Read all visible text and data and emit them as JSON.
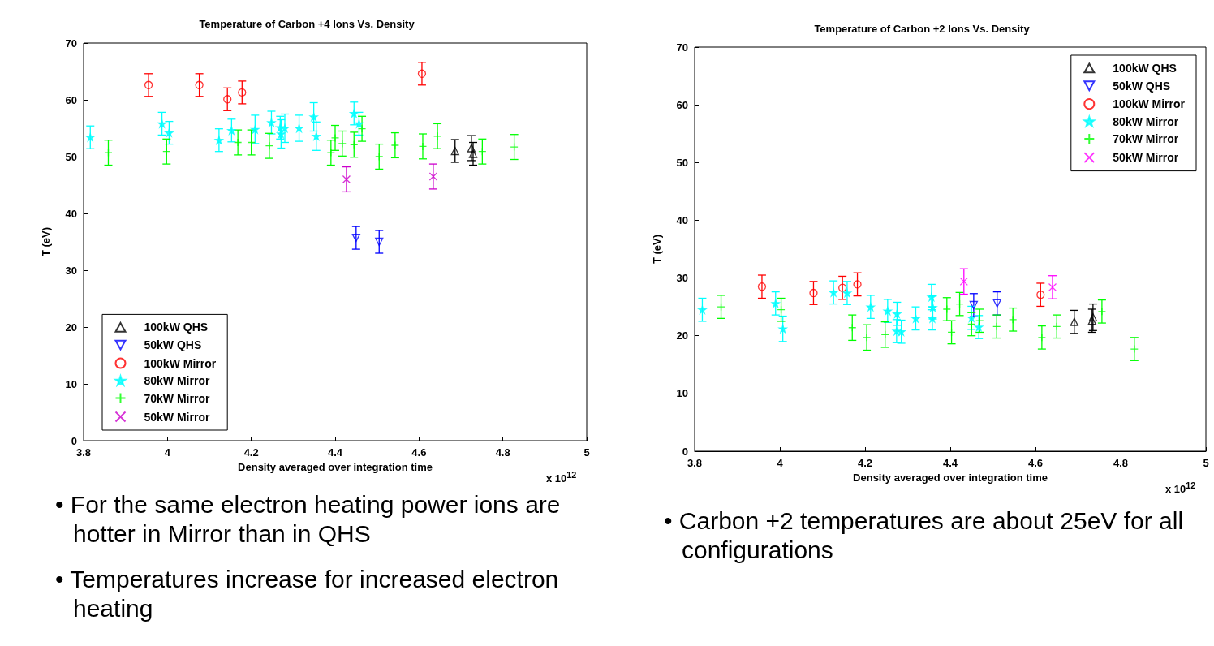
{
  "chart_data": [
    {
      "type": "scatter",
      "title": "Temperature of Carbon +4 Ions Vs. Density",
      "xlabel": "Density averaged over integration time",
      "ylabel": "T (eV)",
      "xlim": [
        3.8,
        5
      ],
      "xticks": [
        3.8,
        4,
        4.2,
        4.4,
        4.6,
        4.8,
        5
      ],
      "ylim": [
        0,
        70
      ],
      "yticks": [
        0,
        10,
        20,
        30,
        40,
        50,
        60,
        70
      ],
      "grid": false,
      "legend": "bottom left",
      "annotations": [
        "x 10$^{12}$",
        "• For the same electron heating power ions are hotter in Mirror than in QHS",
        "• Temperatures increase for increased electron heating"
      ],
      "series": [
        {
          "name": "100kW QHS",
          "color": "#000000",
          "marker": "triangle",
          "x": [
            4.686,
            4.725,
            4.729
          ],
          "values": [
            51,
            51.5,
            50.5
          ],
          "errors": [
            2,
            2.2,
            2
          ]
        },
        {
          "name": "50kW QHS",
          "color": "#0000ff",
          "marker": "triangle-down",
          "x": [
            4.45,
            4.505
          ],
          "values": [
            35.7,
            35
          ],
          "errors": [
            2,
            2
          ]
        },
        {
          "name": "100kW Mirror",
          "color": "#ff0000",
          "marker": "circle",
          "x": [
            3.955,
            4.076,
            4.143,
            4.178,
            4.607
          ],
          "values": [
            62.6,
            62.6,
            60.1,
            61.3,
            64.6
          ],
          "errors": [
            2,
            2,
            2,
            2,
            2
          ]
        },
        {
          "name": "80kW Mirror",
          "color": "#00ffff",
          "marker": "star",
          "x": [
            3.816,
            3.987,
            4.004,
            4.123,
            4.153,
            4.209,
            4.248,
            4.269,
            4.271,
            4.28,
            4.314,
            4.349,
            4.355,
            4.445,
            4.457
          ],
          "values": [
            53.4,
            55.8,
            54.2,
            52.9,
            54.6,
            54.8,
            56,
            55.1,
            54,
            55,
            55,
            57,
            53.6,
            57.6,
            55.8
          ],
          "errors": [
            2,
            2,
            2,
            2,
            2,
            2.5,
            2,
            2,
            2.5,
            2.5,
            2.3,
            2.5,
            2.5,
            2,
            2
          ]
        },
        {
          "name": "70kW Mirror",
          "color": "#00ff00",
          "marker": "cross",
          "x": [
            3.859,
            3.998,
            4.168,
            4.2,
            4.243,
            4.39,
            4.4,
            4.417,
            4.445,
            4.464,
            4.505,
            4.543,
            4.609,
            4.644,
            4.751,
            4.827
          ],
          "values": [
            50.7,
            50.9,
            52.5,
            52.5,
            51.9,
            50.7,
            53.3,
            52.3,
            52.1,
            54.9,
            50,
            52,
            51.8,
            53.6,
            50.9,
            51.7
          ],
          "errors": [
            2.2,
            2.2,
            2.2,
            2.2,
            2.2,
            2.2,
            2.2,
            2.2,
            2.2,
            2.2,
            2.2,
            2.2,
            2.2,
            2.2,
            2.2,
            2.2
          ]
        },
        {
          "name": "50kW Mirror",
          "color": "#cc00cc",
          "marker": "x",
          "x": [
            4.427,
            4.634
          ],
          "values": [
            46,
            46.5
          ],
          "errors": [
            2.2,
            2.2
          ]
        }
      ]
    },
    {
      "type": "scatter",
      "title": "Temperature of Carbon +2 Ions Vs. Density",
      "xlabel": "Density averaged over integration time",
      "ylabel": "T (eV)",
      "xlim": [
        3.8,
        5
      ],
      "xticks": [
        3.8,
        4,
        4.2,
        4.4,
        4.6,
        4.8,
        5
      ],
      "ylim": [
        0,
        70
      ],
      "yticks": [
        0,
        10,
        20,
        30,
        40,
        50,
        60,
        70
      ],
      "grid": false,
      "legend": "top right",
      "annotations": [
        "x 10$^{12}$",
        "• Carbon +2 temperatures are about 25eV for all configurations"
      ],
      "series": [
        {
          "name": "100kW QHS",
          "color": "#000000",
          "marker": "triangle",
          "x": [
            4.691,
            4.733,
            4.735
          ],
          "values": [
            22.4,
            22.6,
            23.2
          ],
          "errors": [
            2,
            2,
            2.3
          ]
        },
        {
          "name": "50kW QHS",
          "color": "#0000ff",
          "marker": "triangle-down",
          "x": [
            4.455,
            4.51
          ],
          "values": [
            25.3,
            25.6
          ],
          "errors": [
            2,
            2
          ]
        },
        {
          "name": "100kW Mirror",
          "color": "#ff0000",
          "marker": "circle",
          "x": [
            3.958,
            4.079,
            4.147,
            4.182,
            4.612
          ],
          "values": [
            28.5,
            27.4,
            28.3,
            28.9,
            27.1
          ],
          "errors": [
            2,
            2,
            2,
            2,
            2
          ]
        },
        {
          "name": "80kW Mirror",
          "color": "#00ffff",
          "marker": "star",
          "x": [
            3.818,
            3.99,
            4.007,
            4.126,
            4.158,
            4.213,
            4.253,
            4.274,
            4.275,
            4.285,
            4.319,
            4.356,
            4.358,
            4.359,
            4.45,
            4.467
          ],
          "values": [
            24.5,
            25.6,
            21.2,
            27.5,
            27.4,
            25,
            24.3,
            20.8,
            23.8,
            20.7,
            23,
            26.7,
            23,
            24.9,
            23.1,
            21.5
          ],
          "errors": [
            2,
            2,
            2.2,
            2,
            2,
            2,
            2,
            2,
            2,
            2,
            2,
            2.2,
            2,
            2,
            2,
            2
          ]
        },
        {
          "name": "70kW Mirror",
          "color": "#00ff00",
          "marker": "cross",
          "x": [
            3.862,
            4.003,
            4.17,
            4.204,
            4.247,
            4.392,
            4.403,
            4.422,
            4.45,
            4.469,
            4.509,
            4.547,
            4.615,
            4.65,
            4.756,
            4.832
          ],
          "values": [
            25,
            24.5,
            21.4,
            19.7,
            20.2,
            24.6,
            20.6,
            25.5,
            22,
            22.6,
            21.6,
            22.8,
            19.7,
            21.6,
            24.2,
            17.7
          ],
          "errors": [
            2,
            2,
            2.2,
            2.2,
            2.2,
            2,
            2,
            2,
            2,
            2,
            2,
            2,
            2,
            2,
            2,
            2
          ]
        },
        {
          "name": "50kW Mirror",
          "color": "#ff00ff",
          "marker": "x",
          "x": [
            4.432,
            4.64
          ],
          "values": [
            29.4,
            28.4
          ],
          "errors": [
            2.2,
            2
          ]
        }
      ]
    }
  ]
}
